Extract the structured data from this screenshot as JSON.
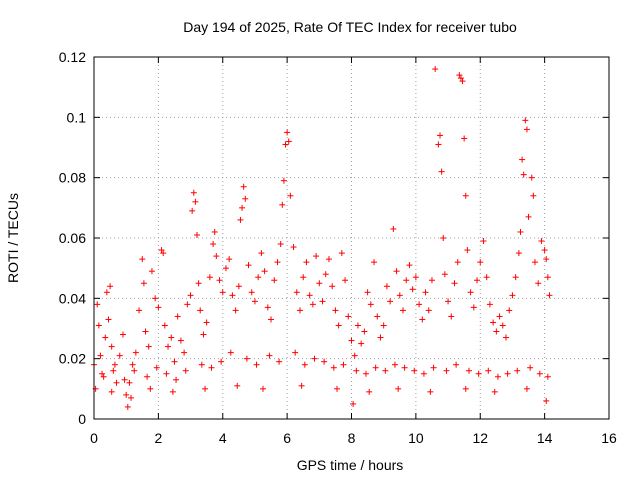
{
  "chart_data": {
    "type": "scatter",
    "title": "Day 194 of 2025, Rate Of TEC Index for receiver tubo",
    "xlabel": "GPS time / hours",
    "ylabel": "ROTI / TECUs",
    "xlim": [
      0,
      16
    ],
    "ylim": [
      0,
      0.12
    ],
    "x_ticks": [
      "0",
      "2",
      "4",
      "6",
      "8",
      "10",
      "12",
      "14",
      "16"
    ],
    "y_ticks": [
      "0",
      "0.02",
      "0.04",
      "0.06",
      "0.08",
      "0.1",
      "0.12"
    ],
    "grid": true,
    "marker": "plus",
    "color": "#ff0000",
    "series": [
      {
        "points": [
          [
            0.0,
            0.018
          ],
          [
            0.1,
            0.038
          ],
          [
            0.15,
            0.031
          ],
          [
            0.2,
            0.021
          ],
          [
            0.3,
            0.014
          ],
          [
            0.35,
            0.027
          ],
          [
            0.4,
            0.042
          ],
          [
            0.45,
            0.033
          ],
          [
            0.5,
            0.044
          ],
          [
            0.55,
            0.024
          ],
          [
            0.6,
            0.016
          ],
          [
            0.7,
            0.012
          ],
          [
            0.8,
            0.021
          ],
          [
            0.9,
            0.028
          ],
          [
            1.0,
            0.008
          ],
          [
            1.05,
            0.004
          ],
          [
            1.1,
            0.012
          ],
          [
            1.2,
            0.018
          ],
          [
            1.3,
            0.022
          ],
          [
            1.4,
            0.036
          ],
          [
            1.5,
            0.053
          ],
          [
            1.55,
            0.045
          ],
          [
            1.6,
            0.029
          ],
          [
            1.7,
            0.024
          ],
          [
            1.8,
            0.049
          ],
          [
            1.9,
            0.04
          ],
          [
            2.0,
            0.037
          ],
          [
            2.1,
            0.056
          ],
          [
            2.15,
            0.055
          ],
          [
            2.2,
            0.031
          ],
          [
            2.3,
            0.024
          ],
          [
            2.4,
            0.027
          ],
          [
            2.5,
            0.019
          ],
          [
            2.6,
            0.034
          ],
          [
            2.7,
            0.026
          ],
          [
            2.8,
            0.022
          ],
          [
            2.9,
            0.038
          ],
          [
            3.0,
            0.041
          ],
          [
            3.05,
            0.069
          ],
          [
            3.1,
            0.075
          ],
          [
            3.15,
            0.072
          ],
          [
            3.2,
            0.061
          ],
          [
            3.25,
            0.045
          ],
          [
            3.3,
            0.036
          ],
          [
            3.4,
            0.028
          ],
          [
            3.5,
            0.032
          ],
          [
            3.6,
            0.047
          ],
          [
            3.7,
            0.058
          ],
          [
            3.75,
            0.062
          ],
          [
            3.8,
            0.054
          ],
          [
            3.9,
            0.046
          ],
          [
            4.0,
            0.042
          ],
          [
            4.1,
            0.05
          ],
          [
            4.2,
            0.053
          ],
          [
            4.3,
            0.041
          ],
          [
            4.4,
            0.036
          ],
          [
            4.5,
            0.044
          ],
          [
            4.55,
            0.066
          ],
          [
            4.6,
            0.07
          ],
          [
            4.65,
            0.077
          ],
          [
            4.7,
            0.073
          ],
          [
            4.8,
            0.051
          ],
          [
            4.9,
            0.042
          ],
          [
            5.0,
            0.039
          ],
          [
            5.1,
            0.047
          ],
          [
            5.2,
            0.055
          ],
          [
            5.3,
            0.049
          ],
          [
            5.4,
            0.037
          ],
          [
            5.5,
            0.033
          ],
          [
            5.6,
            0.046
          ],
          [
            5.7,
            0.052
          ],
          [
            5.8,
            0.058
          ],
          [
            5.85,
            0.071
          ],
          [
            5.9,
            0.079
          ],
          [
            5.95,
            0.091
          ],
          [
            6.0,
            0.095
          ],
          [
            6.05,
            0.092
          ],
          [
            6.1,
            0.074
          ],
          [
            6.2,
            0.057
          ],
          [
            6.3,
            0.042
          ],
          [
            6.4,
            0.036
          ],
          [
            6.5,
            0.047
          ],
          [
            6.6,
            0.052
          ],
          [
            6.7,
            0.041
          ],
          [
            6.8,
            0.038
          ],
          [
            6.9,
            0.054
          ],
          [
            7.0,
            0.045
          ],
          [
            7.1,
            0.039
          ],
          [
            7.2,
            0.048
          ],
          [
            7.3,
            0.053
          ],
          [
            7.4,
            0.044
          ],
          [
            7.5,
            0.036
          ],
          [
            7.6,
            0.031
          ],
          [
            7.7,
            0.055
          ],
          [
            7.8,
            0.046
          ],
          [
            7.9,
            0.034
          ],
          [
            8.0,
            0.026
          ],
          [
            8.05,
            0.005
          ],
          [
            8.1,
            0.021
          ],
          [
            8.2,
            0.031
          ],
          [
            8.3,
            0.025
          ],
          [
            8.4,
            0.029
          ],
          [
            8.5,
            0.042
          ],
          [
            8.6,
            0.038
          ],
          [
            8.7,
            0.052
          ],
          [
            8.8,
            0.034
          ],
          [
            8.9,
            0.027
          ],
          [
            9.0,
            0.031
          ],
          [
            9.1,
            0.044
          ],
          [
            9.2,
            0.039
          ],
          [
            9.3,
            0.063
          ],
          [
            9.4,
            0.049
          ],
          [
            9.5,
            0.041
          ],
          [
            9.6,
            0.036
          ],
          [
            9.7,
            0.046
          ],
          [
            9.8,
            0.051
          ],
          [
            9.9,
            0.043
          ],
          [
            10.0,
            0.047
          ],
          [
            10.1,
            0.038
          ],
          [
            10.2,
            0.033
          ],
          [
            10.3,
            0.042
          ],
          [
            10.4,
            0.036
          ],
          [
            10.5,
            0.046
          ],
          [
            10.6,
            0.116
          ],
          [
            10.7,
            0.091
          ],
          [
            10.75,
            0.094
          ],
          [
            10.8,
            0.082
          ],
          [
            10.85,
            0.06
          ],
          [
            10.9,
            0.048
          ],
          [
            11.0,
            0.039
          ],
          [
            11.1,
            0.034
          ],
          [
            11.2,
            0.045
          ],
          [
            11.3,
            0.052
          ],
          [
            11.35,
            0.114
          ],
          [
            11.4,
            0.113
          ],
          [
            11.45,
            0.112
          ],
          [
            11.5,
            0.093
          ],
          [
            11.55,
            0.074
          ],
          [
            11.6,
            0.056
          ],
          [
            11.7,
            0.042
          ],
          [
            11.8,
            0.037
          ],
          [
            11.9,
            0.046
          ],
          [
            12.0,
            0.052
          ],
          [
            12.1,
            0.059
          ],
          [
            12.2,
            0.047
          ],
          [
            12.3,
            0.038
          ],
          [
            12.4,
            0.032
          ],
          [
            12.5,
            0.029
          ],
          [
            12.6,
            0.034
          ],
          [
            12.7,
            0.031
          ],
          [
            12.8,
            0.027
          ],
          [
            12.9,
            0.036
          ],
          [
            13.0,
            0.041
          ],
          [
            13.1,
            0.047
          ],
          [
            13.2,
            0.055
          ],
          [
            13.25,
            0.062
          ],
          [
            13.3,
            0.086
          ],
          [
            13.35,
            0.081
          ],
          [
            13.4,
            0.099
          ],
          [
            13.45,
            0.096
          ],
          [
            13.5,
            0.067
          ],
          [
            13.6,
            0.08
          ],
          [
            13.65,
            0.074
          ],
          [
            13.7,
            0.052
          ],
          [
            13.8,
            0.045
          ],
          [
            13.9,
            0.059
          ],
          [
            14.0,
            0.056
          ],
          [
            14.05,
            0.053
          ],
          [
            14.1,
            0.047
          ],
          [
            14.15,
            0.041
          ],
          [
            0.25,
            0.015
          ],
          [
            0.65,
            0.018
          ],
          [
            0.95,
            0.013
          ],
          [
            1.25,
            0.016
          ],
          [
            1.65,
            0.014
          ],
          [
            1.95,
            0.017
          ],
          [
            2.25,
            0.015
          ],
          [
            2.55,
            0.013
          ],
          [
            2.85,
            0.016
          ],
          [
            3.35,
            0.018
          ],
          [
            3.65,
            0.017
          ],
          [
            3.95,
            0.019
          ],
          [
            4.25,
            0.022
          ],
          [
            4.75,
            0.02
          ],
          [
            5.05,
            0.018
          ],
          [
            5.45,
            0.021
          ],
          [
            5.75,
            0.019
          ],
          [
            6.25,
            0.022
          ],
          [
            6.55,
            0.018
          ],
          [
            6.85,
            0.02
          ],
          [
            7.15,
            0.019
          ],
          [
            7.45,
            0.017
          ],
          [
            7.75,
            0.018
          ],
          [
            8.15,
            0.016
          ],
          [
            8.45,
            0.015
          ],
          [
            8.75,
            0.017
          ],
          [
            9.05,
            0.016
          ],
          [
            9.35,
            0.018
          ],
          [
            9.65,
            0.017
          ],
          [
            9.95,
            0.016
          ],
          [
            10.25,
            0.015
          ],
          [
            10.55,
            0.017
          ],
          [
            10.95,
            0.016
          ],
          [
            11.25,
            0.018
          ],
          [
            11.65,
            0.016
          ],
          [
            11.95,
            0.015
          ],
          [
            12.25,
            0.016
          ],
          [
            12.55,
            0.014
          ],
          [
            12.85,
            0.015
          ],
          [
            13.15,
            0.016
          ],
          [
            13.55,
            0.017
          ],
          [
            13.85,
            0.015
          ],
          [
            14.1,
            0.014
          ],
          [
            0.05,
            0.01
          ],
          [
            0.55,
            0.009
          ],
          [
            1.15,
            0.007
          ],
          [
            1.75,
            0.01
          ],
          [
            2.45,
            0.009
          ],
          [
            3.45,
            0.01
          ],
          [
            4.45,
            0.011
          ],
          [
            5.25,
            0.01
          ],
          [
            6.45,
            0.011
          ],
          [
            7.55,
            0.01
          ],
          [
            8.55,
            0.009
          ],
          [
            9.45,
            0.01
          ],
          [
            10.45,
            0.009
          ],
          [
            11.55,
            0.01
          ],
          [
            12.45,
            0.009
          ],
          [
            13.45,
            0.01
          ],
          [
            14.05,
            0.006
          ]
        ]
      }
    ]
  }
}
